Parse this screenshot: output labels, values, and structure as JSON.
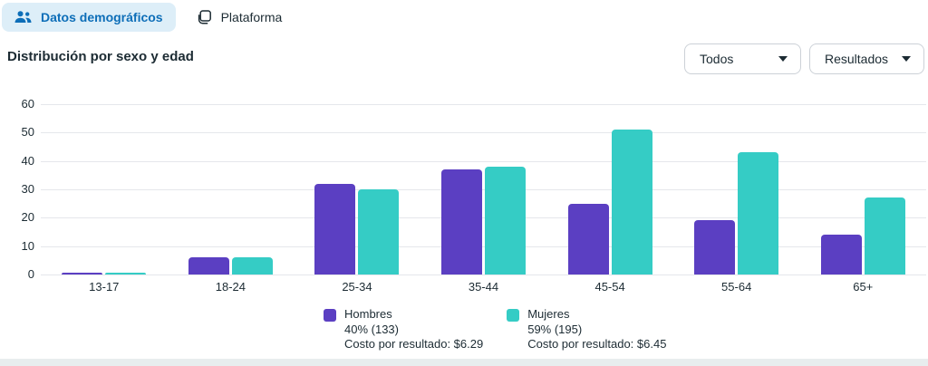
{
  "tabs": [
    {
      "label": "Datos demográficos",
      "active": true
    },
    {
      "label": "Plataforma",
      "active": false
    }
  ],
  "title": "Distribución por sexo y edad",
  "filters": {
    "scope": "Todos",
    "metric": "Resultados"
  },
  "colors": {
    "hombres": "#5b3fc2",
    "mujeres": "#35ccc5",
    "tab_active_bg": "#ddeef8",
    "tab_active_text": "#0d6eb8",
    "gridline": "#e5e7eb"
  },
  "chart_data": {
    "type": "bar",
    "title": "Distribución por sexo y edad",
    "categories": [
      "13-17",
      "18-24",
      "25-34",
      "35-44",
      "45-54",
      "55-64",
      "65+"
    ],
    "series": [
      {
        "name": "Hombres",
        "color": "#5b3fc2",
        "values": [
          0,
          6,
          32,
          37,
          25,
          19,
          14
        ],
        "summary": "40% (133)",
        "cost": "Costo por resultado: $6.29"
      },
      {
        "name": "Mujeres",
        "color": "#35ccc5",
        "values": [
          0,
          6,
          30,
          38,
          51,
          43,
          27
        ],
        "summary": "59% (195)",
        "cost": "Costo por resultado: $6.45"
      }
    ],
    "xlabel": "",
    "ylabel": "",
    "ylim": [
      0,
      60
    ],
    "yticks": [
      60,
      50,
      40,
      30,
      20,
      10,
      0
    ],
    "grid": true,
    "legend_position": "bottom"
  }
}
